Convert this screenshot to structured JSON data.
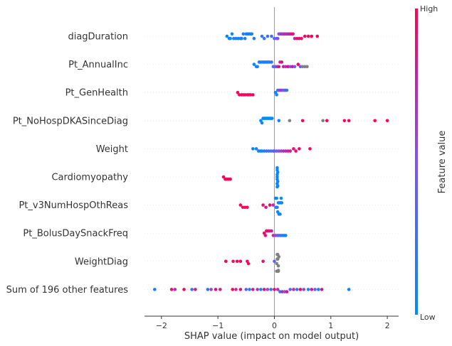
{
  "chart_data": {
    "type": "scatter",
    "subtype": "beeswarm",
    "xlabel": "SHAP value (impact on model output)",
    "xlim": [
      -2.3,
      2.2
    ],
    "xticks": [
      -2,
      -1,
      0,
      1,
      2
    ],
    "grid": false,
    "colorbar": {
      "label": "Feature value",
      "high": "High",
      "low": "Low",
      "low_color": "#008bfb",
      "high_color": "#ff0051",
      "missing_color": "#808080"
    },
    "features": [
      {
        "name": "diagDuration",
        "points": [
          {
            "x": -0.84,
            "v": 0.05
          },
          {
            "x": -0.8,
            "v": 0.08
          },
          {
            "x": -0.78,
            "v": 0.03
          },
          {
            "x": -0.75,
            "v": 0.1
          },
          {
            "x": -0.72,
            "v": 0.06
          },
          {
            "x": -0.68,
            "v": 0.12
          },
          {
            "x": -0.64,
            "v": 0.04
          },
          {
            "x": -0.6,
            "v": 0.09
          },
          {
            "x": -0.58,
            "v": 0.14
          },
          {
            "x": -0.55,
            "v": 0.07
          },
          {
            "x": -0.52,
            "v": 0.11
          },
          {
            "x": -0.5,
            "v": 0.05
          },
          {
            "x": -0.48,
            "v": 0.15
          },
          {
            "x": -0.46,
            "v": 0.08
          },
          {
            "x": -0.44,
            "v": 0.12
          },
          {
            "x": -0.42,
            "v": 0.06
          },
          {
            "x": -0.4,
            "v": 0.1
          },
          {
            "x": -0.36,
            "v": 0.09
          },
          {
            "x": -0.22,
            "v": 0.18
          },
          {
            "x": -0.18,
            "v": 0.2
          },
          {
            "x": -0.12,
            "v": 0.22
          },
          {
            "x": -0.05,
            "v": 0.28
          },
          {
            "x": 0.0,
            "v": 0.3
          },
          {
            "x": 0.04,
            "v": 0.45
          },
          {
            "x": 0.06,
            "v": 0.55
          },
          {
            "x": 0.08,
            "v": 0.6
          },
          {
            "x": 0.1,
            "v": 0.5
          },
          {
            "x": 0.12,
            "v": 0.65
          },
          {
            "x": 0.14,
            "v": 0.7
          },
          {
            "x": 0.16,
            "v": 0.58
          },
          {
            "x": 0.18,
            "v": 0.75
          },
          {
            "x": 0.2,
            "v": 0.68
          },
          {
            "x": 0.22,
            "v": 0.8
          },
          {
            "x": 0.24,
            "v": 0.62
          },
          {
            "x": 0.26,
            "v": 0.85
          },
          {
            "x": 0.28,
            "v": 0.72
          },
          {
            "x": 0.3,
            "v": 0.88
          },
          {
            "x": 0.33,
            "v": 0.9
          },
          {
            "x": 0.36,
            "v": 0.78
          },
          {
            "x": 0.4,
            "v": 0.92
          },
          {
            "x": 0.44,
            "v": 0.95
          },
          {
            "x": 0.48,
            "v": 0.9
          },
          {
            "x": 0.54,
            "v": 0.96
          },
          {
            "x": 0.6,
            "v": 0.97
          },
          {
            "x": 0.66,
            "v": 0.98
          },
          {
            "x": 0.76,
            "v": 0.99
          }
        ]
      },
      {
        "name": "Pt_AnnualInc",
        "points": [
          {
            "x": -0.36,
            "v": 0.05
          },
          {
            "x": -0.32,
            "v": 0.1
          },
          {
            "x": -0.3,
            "v": 0.06
          },
          {
            "x": -0.27,
            "v": 0.12
          },
          {
            "x": -0.25,
            "v": 0.08
          },
          {
            "x": -0.22,
            "v": 0.14
          },
          {
            "x": -0.2,
            "v": 0.07
          },
          {
            "x": -0.18,
            "v": 0.11
          },
          {
            "x": -0.16,
            "v": 0.09
          },
          {
            "x": -0.14,
            "v": 0.13
          },
          {
            "x": -0.12,
            "v": 0.15
          },
          {
            "x": -0.1,
            "v": 0.1
          },
          {
            "x": -0.08,
            "v": 0.18
          },
          {
            "x": -0.05,
            "v": 0.2
          },
          {
            "x": -0.02,
            "v": 0.25
          },
          {
            "x": 0.02,
            "v": 0.5
          },
          {
            "x": 0.05,
            "v": 0.7
          },
          {
            "x": 0.08,
            "v": 0.85
          },
          {
            "x": 0.1,
            "v": 0.75
          },
          {
            "x": 0.13,
            "v": 0.9
          },
          {
            "x": 0.16,
            "v": 0.8
          },
          {
            "x": 0.2,
            "v": 0.65
          },
          {
            "x": 0.24,
            "v": 0.95
          },
          {
            "x": 0.28,
            "v": 0.55
          },
          {
            "x": 0.32,
            "v": 0.92
          },
          {
            "x": 0.36,
            "v": 0.45
          },
          {
            "x": 0.42,
            "v": 0.98
          },
          {
            "x": 0.46,
            "v": 0.4
          },
          {
            "x": 0.5,
            "v": null
          },
          {
            "x": 0.54,
            "v": null
          },
          {
            "x": 0.58,
            "v": null
          }
        ]
      },
      {
        "name": "Pt_GenHealth",
        "points": [
          {
            "x": -0.65,
            "v": 0.97
          },
          {
            "x": -0.62,
            "v": 0.95
          },
          {
            "x": -0.58,
            "v": 0.98
          },
          {
            "x": -0.55,
            "v": 0.96
          },
          {
            "x": -0.52,
            "v": 0.94
          },
          {
            "x": -0.48,
            "v": 0.97
          },
          {
            "x": -0.45,
            "v": 0.95
          },
          {
            "x": -0.42,
            "v": 0.93
          },
          {
            "x": -0.38,
            "v": 0.96
          },
          {
            "x": 0.02,
            "v": 0.05
          },
          {
            "x": 0.04,
            "v": 0.1
          },
          {
            "x": 0.06,
            "v": 0.3
          },
          {
            "x": 0.08,
            "v": 0.45
          },
          {
            "x": 0.1,
            "v": 0.55
          },
          {
            "x": 0.12,
            "v": 0.65
          },
          {
            "x": 0.14,
            "v": 0.6
          },
          {
            "x": 0.16,
            "v": 0.5
          },
          {
            "x": 0.18,
            "v": 0.4
          },
          {
            "x": 0.2,
            "v": 0.3
          },
          {
            "x": 0.22,
            "v": 0.2
          }
        ]
      },
      {
        "name": "Pt_NoHospDKASinceDiag",
        "points": [
          {
            "x": -0.24,
            "v": 0.02
          },
          {
            "x": -0.22,
            "v": 0.03
          },
          {
            "x": -0.2,
            "v": 0.02
          },
          {
            "x": -0.18,
            "v": 0.04
          },
          {
            "x": -0.16,
            "v": 0.03
          },
          {
            "x": -0.14,
            "v": 0.02
          },
          {
            "x": -0.12,
            "v": 0.03
          },
          {
            "x": -0.1,
            "v": 0.04
          },
          {
            "x": -0.08,
            "v": 0.02
          },
          {
            "x": -0.06,
            "v": 0.03
          },
          {
            "x": -0.04,
            "v": 0.05
          },
          {
            "x": 0.08,
            "v": 0.1
          },
          {
            "x": 0.27,
            "v": null
          },
          {
            "x": 0.5,
            "v": 0.95
          },
          {
            "x": 0.86,
            "v": null
          },
          {
            "x": 0.93,
            "v": 0.97
          },
          {
            "x": 1.24,
            "v": 0.96
          },
          {
            "x": 1.32,
            "v": 0.98
          },
          {
            "x": 1.78,
            "v": 0.97
          },
          {
            "x": 2.0,
            "v": 0.99
          }
        ]
      },
      {
        "name": "Weight",
        "points": [
          {
            "x": -0.38,
            "v": 0.05
          },
          {
            "x": -0.32,
            "v": 0.1
          },
          {
            "x": -0.28,
            "v": 0.08
          },
          {
            "x": -0.25,
            "v": 0.12
          },
          {
            "x": -0.22,
            "v": 0.06
          },
          {
            "x": -0.18,
            "v": 0.15
          },
          {
            "x": -0.14,
            "v": 0.2
          },
          {
            "x": -0.1,
            "v": 0.25
          },
          {
            "x": -0.06,
            "v": 0.3
          },
          {
            "x": -0.02,
            "v": 0.35
          },
          {
            "x": 0.0,
            "v": 0.4
          },
          {
            "x": 0.04,
            "v": 0.45
          },
          {
            "x": 0.08,
            "v": 0.55
          },
          {
            "x": 0.12,
            "v": 0.6
          },
          {
            "x": 0.16,
            "v": 0.7
          },
          {
            "x": 0.2,
            "v": 0.75
          },
          {
            "x": 0.24,
            "v": 0.8
          },
          {
            "x": 0.28,
            "v": 0.85
          },
          {
            "x": 0.34,
            "v": 0.9
          },
          {
            "x": 0.38,
            "v": 0.88
          },
          {
            "x": 0.44,
            "v": 0.95
          },
          {
            "x": 0.63,
            "v": 0.98
          }
        ]
      },
      {
        "name": "Cardiomyopathy",
        "points": [
          {
            "x": -0.9,
            "v": 0.98
          },
          {
            "x": -0.87,
            "v": 0.97
          },
          {
            "x": -0.84,
            "v": 0.99
          },
          {
            "x": -0.81,
            "v": 0.98
          },
          {
            "x": -0.78,
            "v": 0.97
          },
          {
            "x": 0.05,
            "v": 0.02
          },
          {
            "x": 0.05,
            "v": 0.02
          },
          {
            "x": 0.05,
            "v": 0.02
          },
          {
            "x": 0.06,
            "v": 0.02
          },
          {
            "x": 0.06,
            "v": 0.02
          },
          {
            "x": 0.05,
            "v": 0.02
          },
          {
            "x": 0.05,
            "v": 0.02
          },
          {
            "x": 0.06,
            "v": 0.02
          },
          {
            "x": 0.05,
            "v": 0.02
          },
          {
            "x": 0.05,
            "v": 0.02
          }
        ]
      },
      {
        "name": "Pt_v3NumHospOthReas",
        "points": [
          {
            "x": -0.6,
            "v": 0.98
          },
          {
            "x": -0.56,
            "v": 0.97
          },
          {
            "x": -0.52,
            "v": 0.98
          },
          {
            "x": -0.48,
            "v": 0.96
          },
          {
            "x": -0.2,
            "v": 0.9
          },
          {
            "x": -0.15,
            "v": 0.85
          },
          {
            "x": -0.08,
            "v": 0.95
          },
          {
            "x": -0.02,
            "v": 0.7
          },
          {
            "x": 0.03,
            "v": 0.2
          },
          {
            "x": 0.05,
            "v": 0.1
          },
          {
            "x": 0.07,
            "v": 0.05
          },
          {
            "x": 0.09,
            "v": 0.08
          },
          {
            "x": 0.11,
            "v": 0.06
          },
          {
            "x": 0.13,
            "v": 0.04
          },
          {
            "x": 0.06,
            "v": 0.03
          },
          {
            "x": 0.08,
            "v": 0.07
          },
          {
            "x": 0.1,
            "v": 0.05
          },
          {
            "x": 0.04,
            "v": 0.09
          },
          {
            "x": 0.12,
            "v": 0.03
          },
          {
            "x": 0.02,
            "v": 0.06
          }
        ]
      },
      {
        "name": "Pt_BolusDaySnackFreq",
        "points": [
          {
            "x": -0.18,
            "v": 0.95
          },
          {
            "x": -0.16,
            "v": 0.9
          },
          {
            "x": -0.14,
            "v": 0.92
          },
          {
            "x": -0.12,
            "v": 0.88
          },
          {
            "x": -0.1,
            "v": 0.97
          },
          {
            "x": -0.08,
            "v": 0.85
          },
          {
            "x": -0.05,
            "v": 0.8
          },
          {
            "x": -0.02,
            "v": 0.75
          },
          {
            "x": 0.02,
            "v": 0.6
          },
          {
            "x": 0.05,
            "v": 0.4
          },
          {
            "x": 0.08,
            "v": 0.3
          },
          {
            "x": 0.11,
            "v": 0.2
          },
          {
            "x": 0.14,
            "v": 0.15
          },
          {
            "x": 0.17,
            "v": 0.1
          },
          {
            "x": 0.2,
            "v": 0.05
          }
        ]
      },
      {
        "name": "WeightDiag",
        "points": [
          {
            "x": -0.86,
            "v": 0.97
          },
          {
            "x": -0.73,
            "v": 0.98
          },
          {
            "x": -0.66,
            "v": 0.96
          },
          {
            "x": -0.6,
            "v": 0.97
          },
          {
            "x": -0.48,
            "v": 0.95
          },
          {
            "x": -0.46,
            "v": 0.98
          },
          {
            "x": -0.2,
            "v": 0.9
          },
          {
            "x": 0.0,
            "v": 0.4
          },
          {
            "x": 0.04,
            "v": null
          },
          {
            "x": 0.05,
            "v": null
          },
          {
            "x": 0.06,
            "v": null
          },
          {
            "x": 0.07,
            "v": null
          },
          {
            "x": 0.08,
            "v": null
          },
          {
            "x": 0.05,
            "v": null
          },
          {
            "x": 0.06,
            "v": null
          },
          {
            "x": 0.07,
            "v": null
          },
          {
            "x": 0.04,
            "v": null
          },
          {
            "x": 0.06,
            "v": null
          },
          {
            "x": 0.05,
            "v": null
          },
          {
            "x": 0.07,
            "v": null
          }
        ]
      },
      {
        "name": "Sum of 196 other features",
        "points": [
          {
            "x": -2.12,
            "v": 0.05
          },
          {
            "x": -1.82,
            "v": 0.9
          },
          {
            "x": -1.76,
            "v": 0.7
          },
          {
            "x": -1.6,
            "v": 0.95
          },
          {
            "x": -1.46,
            "v": 0.3
          },
          {
            "x": -1.4,
            "v": 0.85
          },
          {
            "x": -1.18,
            "v": 0.2
          },
          {
            "x": -1.12,
            "v": 0.6
          },
          {
            "x": -1.04,
            "v": 0.92
          },
          {
            "x": -0.96,
            "v": 0.8
          },
          {
            "x": -0.74,
            "v": 0.97
          },
          {
            "x": -0.68,
            "v": 0.75
          },
          {
            "x": -0.6,
            "v": 0.9
          },
          {
            "x": -0.5,
            "v": 0.4
          },
          {
            "x": -0.44,
            "v": 0.2
          },
          {
            "x": -0.38,
            "v": 0.85
          },
          {
            "x": -0.3,
            "v": 0.65
          },
          {
            "x": -0.24,
            "v": 0.1
          },
          {
            "x": -0.18,
            "v": 0.9
          },
          {
            "x": -0.12,
            "v": 0.55
          },
          {
            "x": -0.06,
            "v": 0.3
          },
          {
            "x": 0.0,
            "v": 0.95
          },
          {
            "x": 0.06,
            "v": 0.7
          },
          {
            "x": 0.1,
            "v": 0.15
          },
          {
            "x": 0.14,
            "v": 0.8
          },
          {
            "x": 0.18,
            "v": 0.5
          },
          {
            "x": 0.22,
            "v": 0.9
          },
          {
            "x": 0.28,
            "v": 0.35
          },
          {
            "x": 0.34,
            "v": 0.75
          },
          {
            "x": 0.4,
            "v": 0.2
          },
          {
            "x": 0.46,
            "v": 0.95
          },
          {
            "x": 0.52,
            "v": 0.6
          },
          {
            "x": 0.6,
            "v": 0.1
          },
          {
            "x": 0.66,
            "v": 0.85
          },
          {
            "x": 0.72,
            "v": 0.45
          },
          {
            "x": 0.78,
            "v": 0.05
          },
          {
            "x": 0.84,
            "v": 0.9
          },
          {
            "x": 1.32,
            "v": 0.05
          }
        ]
      }
    ]
  }
}
